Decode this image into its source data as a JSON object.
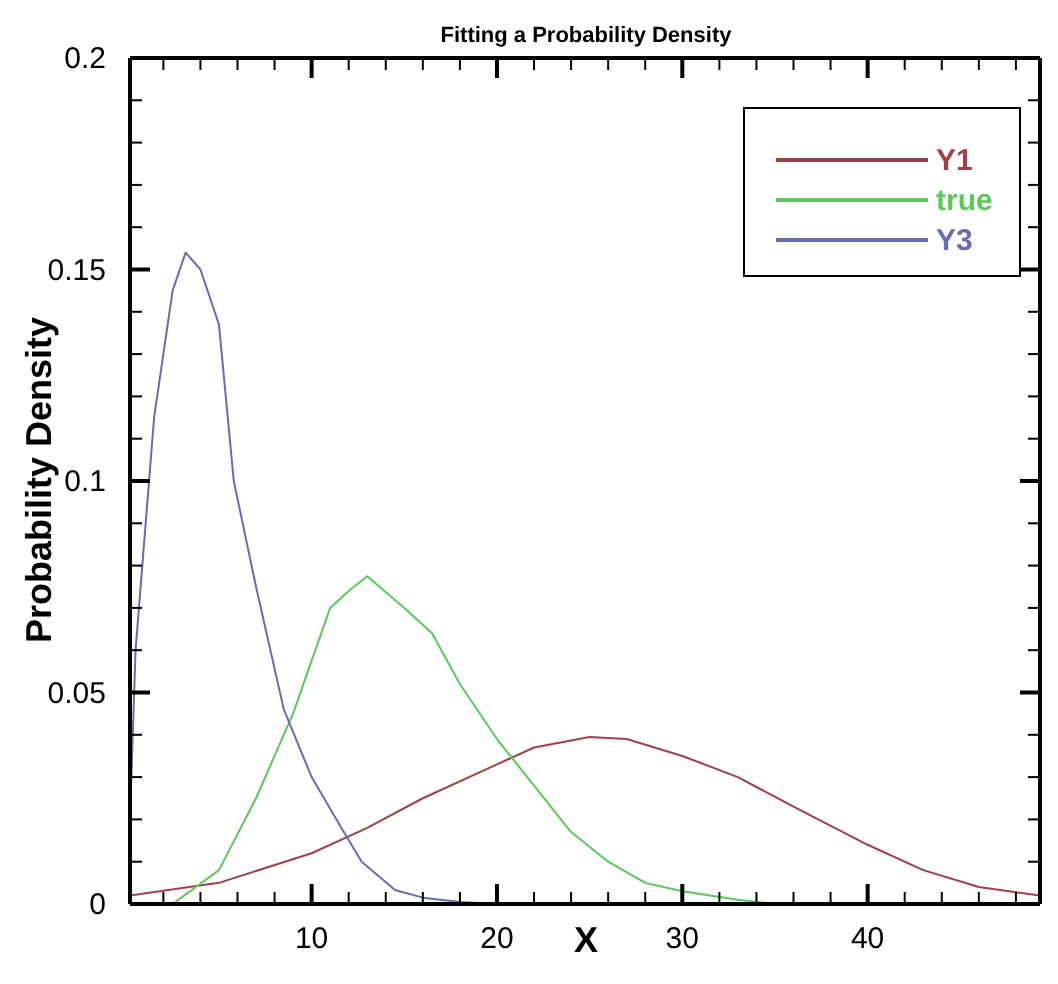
{
  "chart_data": {
    "type": "line",
    "title": "Fitting a Probability Density",
    "xlabel": "X",
    "ylabel": "Probability Density",
    "xlim": [
      0.2,
      49.3
    ],
    "ylim": [
      0,
      0.2
    ],
    "xticks": [
      {
        "value": 2,
        "label": null
      },
      {
        "value": 4,
        "label": null
      },
      {
        "value": 6,
        "label": null
      },
      {
        "value": 8,
        "label": null
      },
      10,
      {
        "value": 12,
        "label": null
      },
      {
        "value": 14,
        "label": null
      },
      {
        "value": 16,
        "label": null
      },
      {
        "value": 18,
        "label": null
      },
      20,
      {
        "value": 22,
        "label": null
      },
      {
        "value": 24,
        "label": null
      },
      {
        "value": 26,
        "label": null
      },
      {
        "value": 28,
        "label": null
      },
      30,
      {
        "value": 32,
        "label": null
      },
      {
        "value": 34,
        "label": null
      },
      {
        "value": 36,
        "label": null
      },
      {
        "value": 38,
        "label": null
      },
      40,
      {
        "value": 42,
        "label": null
      },
      {
        "value": 44,
        "label": null
      },
      {
        "value": 46,
        "label": null
      },
      {
        "value": 48,
        "label": null
      }
    ],
    "yticks": [
      0,
      {
        "value": 0.01,
        "label": null
      },
      {
        "value": 0.02,
        "label": null
      },
      {
        "value": 0.03,
        "label": null
      },
      {
        "value": 0.04,
        "label": null
      },
      0.05,
      {
        "value": 0.06,
        "label": null
      },
      {
        "value": 0.07,
        "label": null
      },
      {
        "value": 0.08,
        "label": null
      },
      {
        "value": 0.09,
        "label": null
      },
      0.1,
      {
        "value": 0.11,
        "label": null
      },
      {
        "value": 0.12,
        "label": null
      },
      {
        "value": 0.13,
        "label": null
      },
      {
        "value": 0.14,
        "label": null
      },
      0.15,
      {
        "value": 0.16,
        "label": null
      },
      {
        "value": 0.17,
        "label": null
      },
      {
        "value": 0.18,
        "label": null
      },
      {
        "value": 0.19,
        "label": null
      },
      0.2
    ],
    "grid": false,
    "legend": "top right",
    "marker": "none",
    "line_style": "solid",
    "series": [
      {
        "name": "Y1",
        "color": "#a0404a",
        "x": [
          0.2,
          5,
          10,
          13,
          16,
          20,
          22,
          25,
          27,
          30,
          33,
          36,
          40,
          43,
          46,
          49.3
        ],
        "values": [
          0.002,
          0.005,
          0.012,
          0.018,
          0.025,
          0.033,
          0.037,
          0.0395,
          0.039,
          0.035,
          0.03,
          0.023,
          0.014,
          0.008,
          0.004,
          0.002
        ]
      },
      {
        "name": "true",
        "color": "#5cc85c",
        "x": [
          2.5,
          5,
          7,
          9,
          11,
          12,
          13,
          15,
          16.5,
          18,
          20,
          22,
          24,
          26,
          28,
          30,
          33,
          35
        ],
        "values": [
          0,
          0.008,
          0.025,
          0.045,
          0.07,
          0.074,
          0.0775,
          0.07,
          0.064,
          0.052,
          0.039,
          0.028,
          0.017,
          0.01,
          0.005,
          0.003,
          0.001,
          0
        ]
      },
      {
        "name": "Y3",
        "color": "#6a6ab8",
        "x": [
          0.2,
          0.5,
          1.5,
          2.5,
          3.2,
          4,
          5,
          5.8,
          7,
          8.5,
          10,
          11.6,
          12.7,
          14.5,
          16,
          18,
          20
        ],
        "values": [
          0.02,
          0.06,
          0.115,
          0.145,
          0.154,
          0.15,
          0.137,
          0.1,
          0.075,
          0.046,
          0.03,
          0.018,
          0.01,
          0.0033,
          0.0015,
          0.0005,
          0
        ]
      }
    ]
  }
}
